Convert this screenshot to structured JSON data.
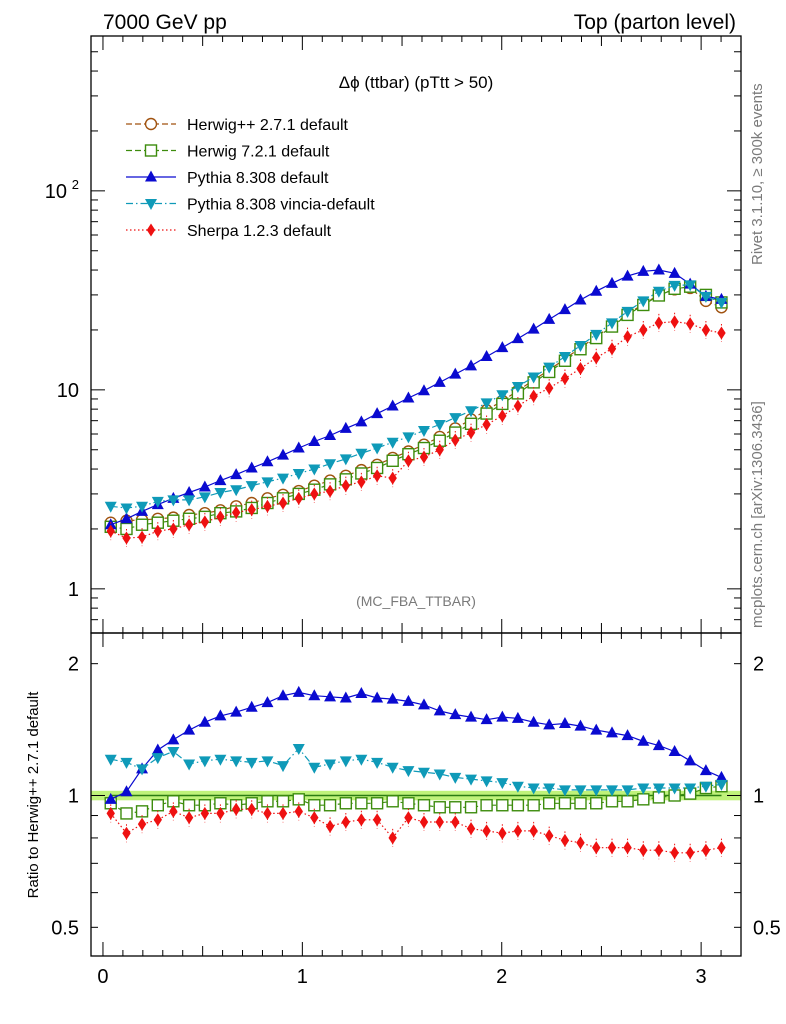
{
  "header": {
    "left": "7000 GeV pp",
    "right": "Top (parton level)"
  },
  "side_labels": {
    "rivet": "Rivet 3.1.10, ≥ 300k events",
    "mcplots": "mcplots.cern.ch [arXiv:1306.3436]"
  },
  "chart_data": [
    {
      "type": "line",
      "title": "Δϕ (ttbar) (pTtt > 50)",
      "watermark": "(MC_FBA_TTBAR)",
      "ylabel": "",
      "xlabel": "",
      "yscale": "log",
      "xlim": [
        -0.06,
        3.2
      ],
      "ylim": [
        0.6,
        600
      ],
      "yticks": [
        {
          "value": 1,
          "label": "1"
        },
        {
          "value": 10,
          "label": "10"
        },
        {
          "value": 100,
          "label": "10",
          "sup": "2"
        }
      ],
      "legend_position": "top-left",
      "x": [
        0.039,
        0.118,
        0.196,
        0.275,
        0.353,
        0.432,
        0.511,
        0.589,
        0.668,
        0.746,
        0.825,
        0.903,
        0.982,
        1.06,
        1.139,
        1.218,
        1.296,
        1.375,
        1.453,
        1.532,
        1.61,
        1.689,
        1.767,
        1.846,
        1.924,
        2.003,
        2.081,
        2.16,
        2.238,
        2.317,
        2.395,
        2.474,
        2.553,
        2.631,
        2.71,
        2.788,
        2.867,
        2.945,
        3.024,
        3.102
      ],
      "series": [
        {
          "name": "Herwig++ 2.7.1 default",
          "color": "#a0520f",
          "marker": "open-circle",
          "linestyle": "dashed",
          "values": [
            2.15,
            2.2,
            2.22,
            2.25,
            2.28,
            2.35,
            2.4,
            2.48,
            2.6,
            2.7,
            2.85,
            2.97,
            3.1,
            3.3,
            3.5,
            3.7,
            3.95,
            4.2,
            4.55,
            4.9,
            5.3,
            5.8,
            6.4,
            7.1,
            7.9,
            8.8,
            9.9,
            11.2,
            12.6,
            14.3,
            16.3,
            18.5,
            21,
            24,
            27,
            30,
            32,
            32.5,
            28,
            26
          ]
        },
        {
          "name": "Herwig 7.2.1 default",
          "color": "#3d8c0d",
          "marker": "open-square",
          "linestyle": "dashed",
          "values": [
            2.05,
            2.0,
            2.1,
            2.15,
            2.2,
            2.25,
            2.3,
            2.4,
            2.45,
            2.55,
            2.7,
            2.85,
            3.0,
            3.15,
            3.35,
            3.55,
            3.8,
            4.05,
            4.4,
            4.75,
            5.1,
            5.55,
            6.1,
            6.75,
            7.6,
            8.5,
            9.6,
            10.9,
            12.3,
            14.0,
            16.0,
            18.2,
            20.8,
            23.8,
            26.7,
            29.8,
            32.2,
            33.0,
            30.0,
            27.5
          ]
        },
        {
          "name": "Pythia 8.308 default",
          "color": "#0a0ad0",
          "marker": "filled-triangle-up",
          "linestyle": "solid",
          "values": [
            2.1,
            2.25,
            2.45,
            2.65,
            2.85,
            3.05,
            3.25,
            3.5,
            3.75,
            4.05,
            4.35,
            4.7,
            5.1,
            5.5,
            5.9,
            6.4,
            6.9,
            7.6,
            8.3,
            9.1,
            9.9,
            10.9,
            12.0,
            13.2,
            14.7,
            16.3,
            18.1,
            20.2,
            22.6,
            25.3,
            28.3,
            31.3,
            34.3,
            37.3,
            39.4,
            40.0,
            38.5,
            34.0,
            29.5,
            28.5
          ]
        },
        {
          "name": "Pythia 8.308 vincia-default",
          "color": "#0f9ab8",
          "marker": "filled-triangle-down",
          "linestyle": "dashdot",
          "values": [
            2.6,
            2.55,
            2.6,
            2.75,
            2.8,
            2.8,
            2.9,
            3.05,
            3.15,
            3.3,
            3.45,
            3.6,
            3.8,
            4.0,
            4.25,
            4.5,
            4.8,
            5.1,
            5.45,
            5.8,
            6.25,
            6.7,
            7.25,
            7.85,
            8.6,
            9.45,
            10.4,
            11.6,
            13.0,
            14.7,
            16.7,
            19.0,
            21.7,
            24.8,
            28.0,
            31.3,
            33.5,
            33.7,
            29.5,
            27.5
          ]
        },
        {
          "name": "Sherpa 1.2.3 default",
          "color": "#ee1111",
          "marker": "filled-diamond",
          "linestyle": "dotted",
          "values": [
            1.95,
            1.8,
            1.82,
            1.95,
            2.0,
            2.1,
            2.17,
            2.3,
            2.42,
            2.5,
            2.6,
            2.7,
            2.85,
            3.0,
            3.1,
            3.3,
            3.45,
            3.7,
            3.6,
            4.4,
            4.6,
            5.0,
            5.6,
            6.1,
            6.7,
            7.4,
            8.3,
            9.3,
            10.2,
            11.4,
            12.8,
            14.5,
            16.1,
            18.5,
            20.0,
            21.7,
            22.0,
            21.5,
            20.0,
            19.3
          ]
        }
      ]
    },
    {
      "type": "line",
      "title": "",
      "ylabel": "Ratio to Herwig++ 2.7.1 default",
      "xlabel": "",
      "yscale": "log",
      "xlim": [
        -0.06,
        3.2
      ],
      "ylim": [
        0.43,
        2.35
      ],
      "yticks": [
        {
          "value": 0.5,
          "label": "0.5"
        },
        {
          "value": 1,
          "label": "1"
        },
        {
          "value": 2,
          "label": "2"
        }
      ],
      "xticks": [
        {
          "value": 0,
          "label": "0"
        },
        {
          "value": 1,
          "label": "1"
        },
        {
          "value": 2,
          "label": "2"
        },
        {
          "value": 3,
          "label": "3"
        }
      ],
      "reference_band": {
        "low": 0.975,
        "high": 1.025,
        "color": "#bff27a"
      },
      "x": [
        0.039,
        0.118,
        0.196,
        0.275,
        0.353,
        0.432,
        0.511,
        0.589,
        0.668,
        0.746,
        0.825,
        0.903,
        0.982,
        1.06,
        1.139,
        1.218,
        1.296,
        1.375,
        1.453,
        1.532,
        1.61,
        1.689,
        1.767,
        1.846,
        1.924,
        2.003,
        2.081,
        2.16,
        2.238,
        2.317,
        2.395,
        2.474,
        2.553,
        2.631,
        2.71,
        2.788,
        2.867,
        2.945,
        3.024,
        3.102
      ],
      "series": [
        {
          "name": "Herwig++ 2.7.1 default",
          "color": "#a0520f",
          "marker": "open-circle",
          "linestyle": "dashed",
          "values": [
            1,
            1,
            1,
            1,
            1,
            1,
            1,
            1,
            1,
            1,
            1,
            1,
            1,
            1,
            1,
            1,
            1,
            1,
            1,
            1,
            1,
            1,
            1,
            1,
            1,
            1,
            1,
            1,
            1,
            1,
            1,
            1,
            1,
            1,
            1,
            1,
            1,
            1,
            1,
            1
          ]
        },
        {
          "name": "Herwig 7.2.1 default",
          "color": "#3d8c0d",
          "marker": "open-square",
          "linestyle": "dashed",
          "values": [
            0.96,
            0.91,
            0.92,
            0.95,
            0.97,
            0.95,
            0.95,
            0.96,
            0.95,
            0.96,
            0.97,
            0.97,
            0.98,
            0.95,
            0.95,
            0.96,
            0.96,
            0.96,
            0.97,
            0.96,
            0.95,
            0.94,
            0.94,
            0.94,
            0.95,
            0.95,
            0.95,
            0.95,
            0.96,
            0.96,
            0.96,
            0.96,
            0.97,
            0.97,
            0.98,
            0.99,
            1.0,
            1.01,
            1.04,
            1.05
          ]
        },
        {
          "name": "Pythia 8.308 default",
          "color": "#0a0ad0",
          "marker": "filled-triangle-up",
          "linestyle": "solid",
          "values": [
            0.98,
            1.02,
            1.15,
            1.27,
            1.34,
            1.41,
            1.47,
            1.52,
            1.55,
            1.59,
            1.63,
            1.69,
            1.72,
            1.69,
            1.68,
            1.67,
            1.71,
            1.67,
            1.66,
            1.64,
            1.61,
            1.56,
            1.53,
            1.51,
            1.49,
            1.51,
            1.5,
            1.47,
            1.45,
            1.46,
            1.44,
            1.41,
            1.39,
            1.37,
            1.33,
            1.3,
            1.26,
            1.2,
            1.14,
            1.1
          ]
        },
        {
          "name": "Pythia 8.308 vincia-default",
          "color": "#0f9ab8",
          "marker": "filled-triangle-down",
          "linestyle": "dashdot",
          "values": [
            1.21,
            1.19,
            1.15,
            1.22,
            1.26,
            1.18,
            1.2,
            1.21,
            1.2,
            1.19,
            1.2,
            1.17,
            1.28,
            1.16,
            1.18,
            1.2,
            1.21,
            1.19,
            1.16,
            1.14,
            1.13,
            1.12,
            1.1,
            1.09,
            1.08,
            1.07,
            1.05,
            1.04,
            1.04,
            1.03,
            1.03,
            1.03,
            1.03,
            1.03,
            1.04,
            1.04,
            1.04,
            1.04,
            1.05,
            1.06
          ]
        },
        {
          "name": "Sherpa 1.2.3 default",
          "color": "#ee1111",
          "marker": "filled-diamond",
          "linestyle": "dotted",
          "values": [
            0.91,
            0.82,
            0.86,
            0.88,
            0.92,
            0.89,
            0.91,
            0.91,
            0.93,
            0.93,
            0.91,
            0.91,
            0.92,
            0.89,
            0.85,
            0.87,
            0.88,
            0.88,
            0.8,
            0.89,
            0.87,
            0.87,
            0.87,
            0.84,
            0.83,
            0.82,
            0.83,
            0.83,
            0.81,
            0.79,
            0.78,
            0.76,
            0.76,
            0.76,
            0.75,
            0.75,
            0.74,
            0.74,
            0.75,
            0.76
          ]
        }
      ]
    }
  ]
}
